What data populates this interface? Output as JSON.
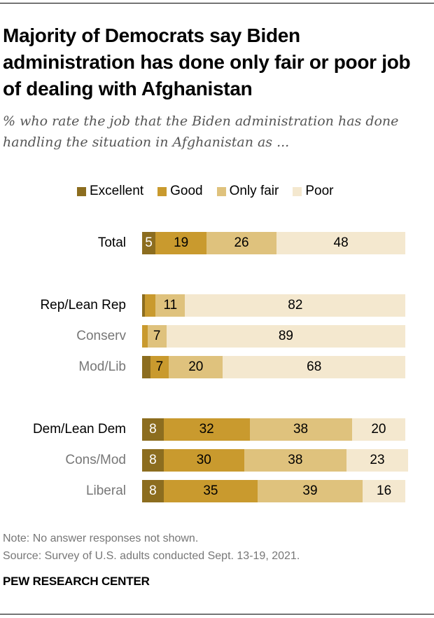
{
  "title": "Majority of Democrats say Biden administration has done only fair or poor job of dealing with Afghanistan",
  "subtitle": "% who rate the job that the Biden administration has done handling the situation in Afghanistan as ...",
  "legend": [
    {
      "key": "excellent",
      "label": "Excellent",
      "color": "#8C6D1F"
    },
    {
      "key": "good",
      "label": "Good",
      "color": "#C99A2E"
    },
    {
      "key": "fair",
      "label": "Only fair",
      "color": "#DFC27D"
    },
    {
      "key": "poor",
      "label": "Poor",
      "color": "#F4E8CF"
    }
  ],
  "note": "Note: No answer responses not shown.",
  "source": "Source: Survey of U.S. adults conducted Sept. 13-19, 2021.",
  "brand": "PEW RESEARCH CENTER",
  "chart_data": {
    "type": "bar",
    "orientation": "horizontal",
    "stacked": true,
    "title": "Majority of Democrats say Biden administration has done only fair or poor job of dealing with Afghanistan",
    "subtitle": "% who rate the job that the Biden administration has done handling the situation in Afghanistan as ...",
    "xlabel": "",
    "ylabel": "",
    "xlim": [
      0,
      100
    ],
    "grid": false,
    "legend_position": "top",
    "categories": [
      "Total",
      "Rep/Lean Rep",
      "Conserv",
      "Mod/Lib",
      "Dem/Lean Dem",
      "Cons/Mod",
      "Liberal"
    ],
    "category_types": [
      "group",
      "group",
      "sub",
      "sub",
      "group",
      "sub",
      "sub"
    ],
    "series": [
      {
        "name": "Excellent",
        "values": [
          5,
          1,
          0,
          3,
          8,
          8,
          8
        ],
        "labels": [
          "5",
          "",
          "",
          "",
          "8",
          "8",
          "8"
        ]
      },
      {
        "name": "Good",
        "values": [
          19,
          4,
          2,
          7,
          32,
          30,
          35
        ],
        "labels": [
          "19",
          "",
          "",
          "7",
          "32",
          "30",
          "35"
        ]
      },
      {
        "name": "Only fair",
        "values": [
          26,
          11,
          7,
          20,
          38,
          38,
          39
        ],
        "labels": [
          "26",
          "11",
          "7",
          "20",
          "38",
          "38",
          "39"
        ]
      },
      {
        "name": "Poor",
        "values": [
          48,
          82,
          89,
          68,
          20,
          23,
          16
        ],
        "labels": [
          "48",
          "82",
          "89",
          "68",
          "20",
          "23",
          "16"
        ]
      }
    ]
  }
}
